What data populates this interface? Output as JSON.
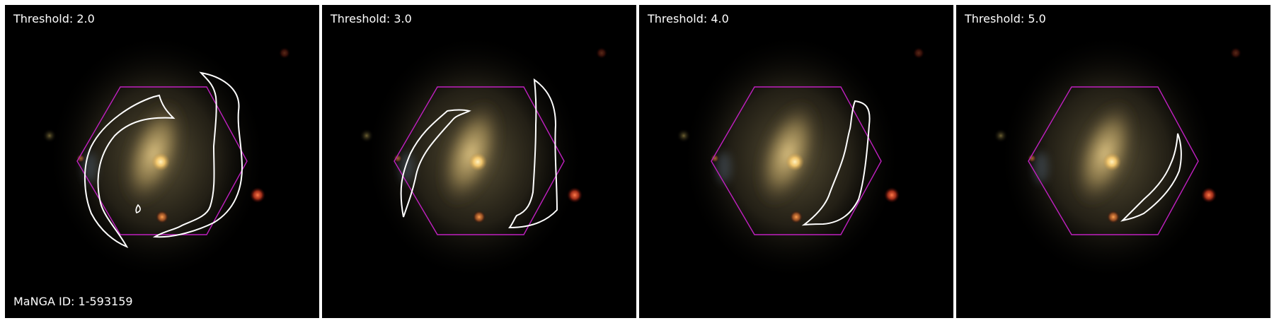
{
  "manga_id_label": "MaNGA ID: 1-593159",
  "colors": {
    "background": "#000000",
    "hexagon": "#c020c0",
    "contour": "#ffffff",
    "label_text": "#ffffff",
    "galaxy_core": "#ffd87a",
    "galaxy_disk": "#c8a86a"
  },
  "panels": [
    {
      "id": "threshold-2",
      "title": "Threshold: 2.0",
      "threshold": 2.0
    },
    {
      "id": "threshold-3",
      "title": "Threshold: 3.0",
      "threshold": 3.0
    },
    {
      "id": "threshold-4",
      "title": "Threshold: 4.0",
      "threshold": 4.0
    },
    {
      "id": "threshold-5",
      "title": "Threshold: 5.0",
      "threshold": 5.0
    }
  ]
}
